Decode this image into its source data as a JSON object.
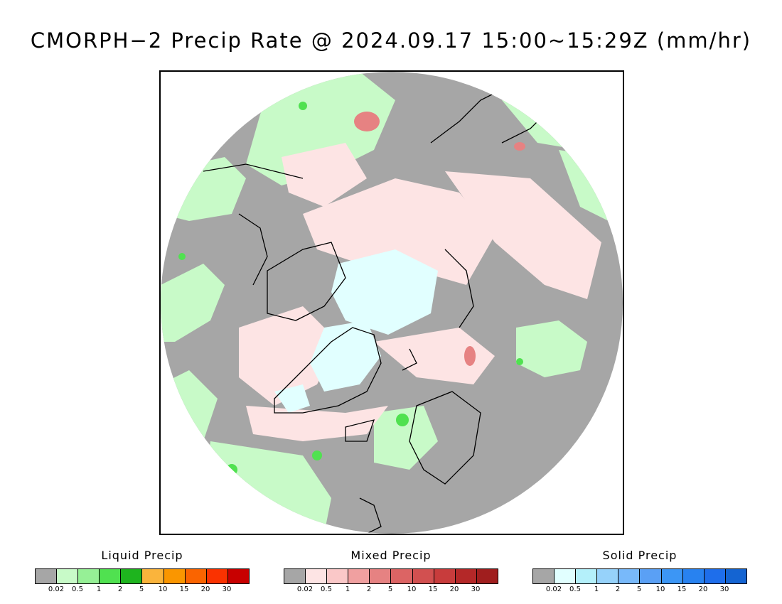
{
  "title": "CMORPH−2 Precip Rate @ 2024.09.17 15:00~15:29Z (mm/hr)",
  "legends": [
    {
      "title": "Liquid Precip",
      "colors": [
        "#a6a6a6",
        "#c8fac8",
        "#96f096",
        "#50e150",
        "#1eb41e",
        "#fab43c",
        "#fa9600",
        "#fa6400",
        "#fa3200",
        "#c80000"
      ],
      "ticks": [
        "0.02",
        "0.5",
        "1",
        "2",
        "5",
        "10",
        "15",
        "20",
        "30"
      ]
    },
    {
      "title": "Mixed Precip",
      "colors": [
        "#a6a6a6",
        "#fde4e4",
        "#fac8c8",
        "#f0a0a0",
        "#e68282",
        "#dc6464",
        "#d25050",
        "#c83c3c",
        "#b42828",
        "#a01e1e"
      ],
      "ticks": [
        "0.02",
        "0.5",
        "1",
        "2",
        "5",
        "10",
        "15",
        "20",
        "30"
      ]
    },
    {
      "title": "Solid Precip",
      "colors": [
        "#a6a6a6",
        "#e1ffff",
        "#b4f0fa",
        "#96d2fa",
        "#78b9fa",
        "#5aa0f5",
        "#3c96f5",
        "#2882f0",
        "#1e6eeb",
        "#1464d2"
      ],
      "ticks": [
        "0.02",
        "0.5",
        "1",
        "2",
        "5",
        "10",
        "15",
        "20",
        "30"
      ]
    }
  ]
}
